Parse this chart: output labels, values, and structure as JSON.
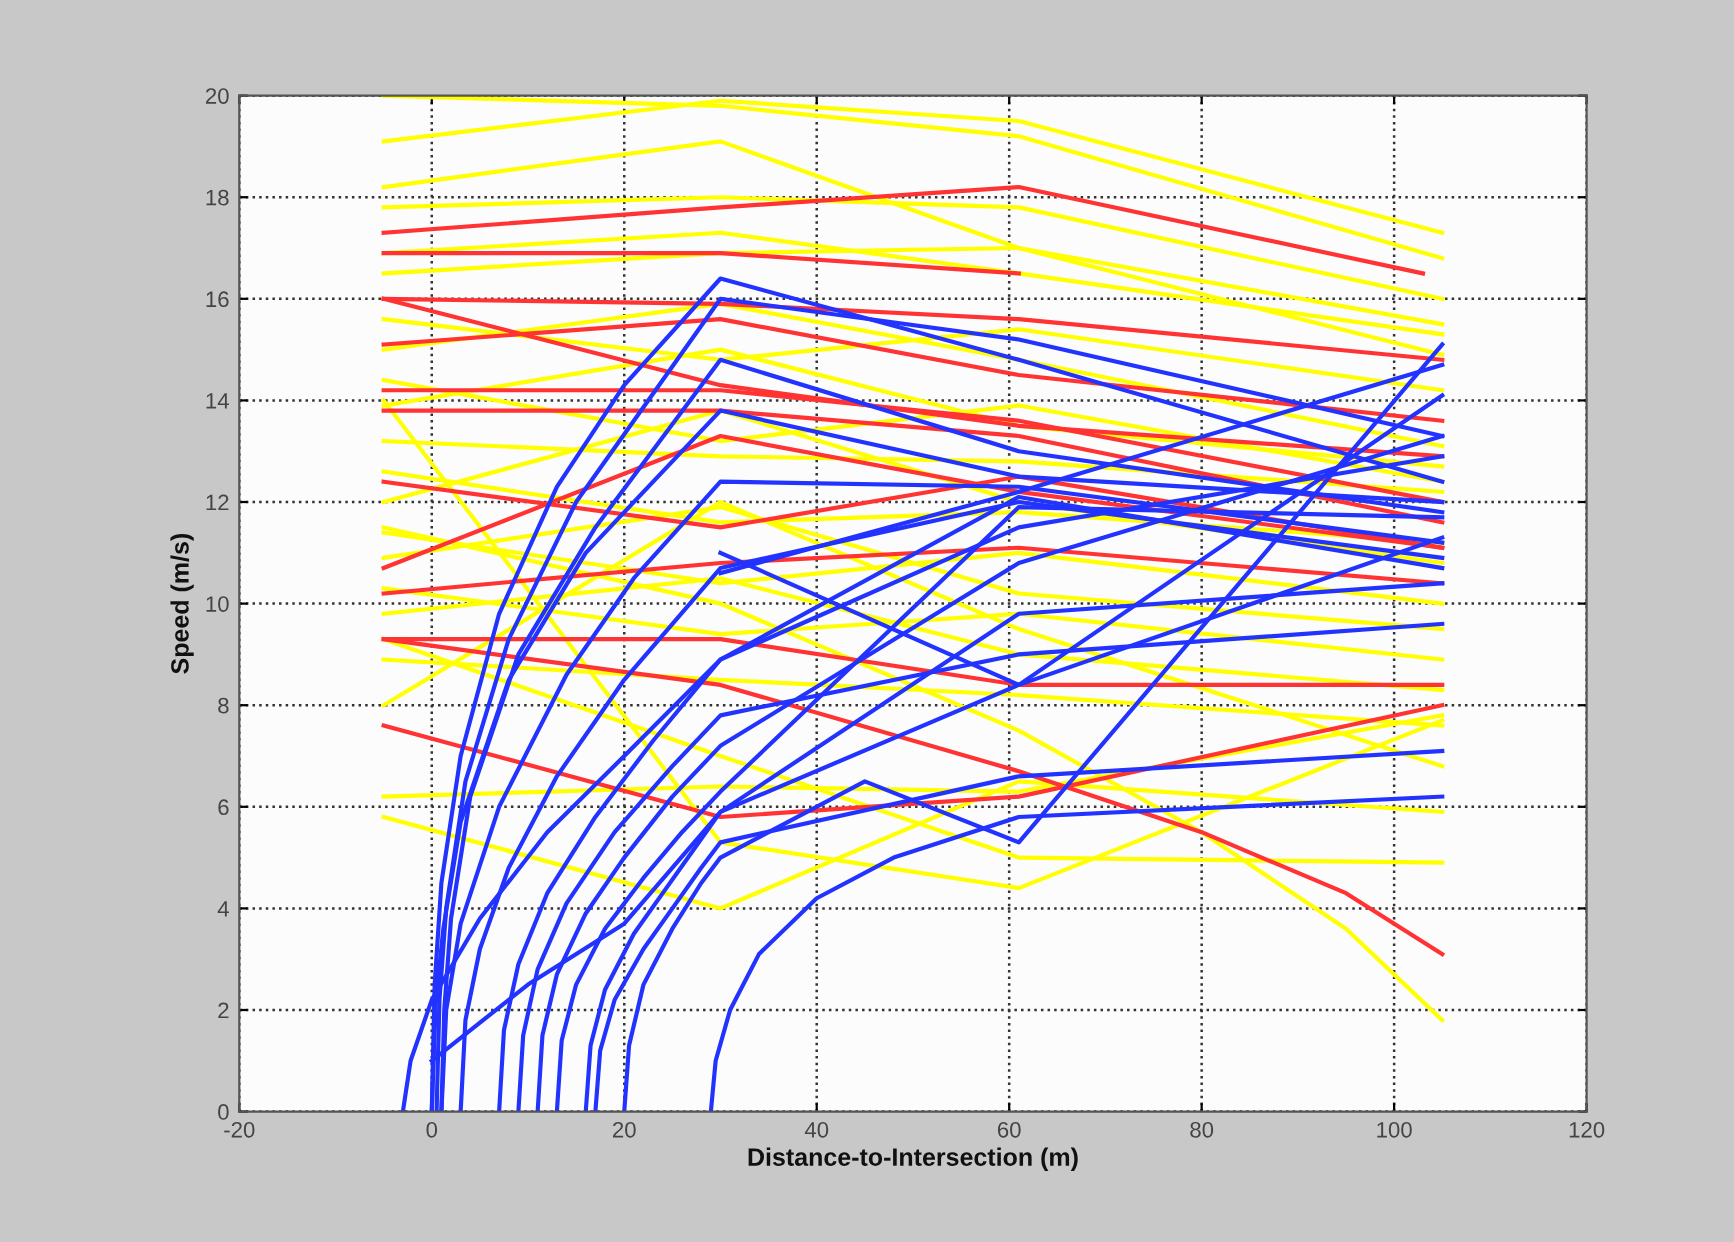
{
  "chart_data": {
    "type": "line",
    "xlabel": "Distance-to-Intersection (m)",
    "ylabel": "Speed (m/s)",
    "xlim": [
      -20,
      120
    ],
    "xticks": [
      -20,
      0,
      20,
      40,
      60,
      80,
      100,
      120
    ],
    "ylim": [
      0,
      20
    ],
    "yticks": [
      0,
      2,
      4,
      6,
      8,
      10,
      12,
      14,
      16,
      18,
      20
    ],
    "grid": true,
    "line_style": "solid",
    "series": [
      {
        "color": "#ffff00",
        "x": [
          -5,
          30,
          61,
          105
        ],
        "values": [
          20.0,
          19.8,
          19.2,
          16.8
        ]
      },
      {
        "color": "#ffff00",
        "x": [
          -5,
          30,
          61,
          105
        ],
        "values": [
          19.1,
          19.9,
          19.5,
          17.3
        ]
      },
      {
        "color": "#ffff00",
        "x": [
          -5,
          30,
          61,
          105
        ],
        "values": [
          18.2,
          19.1,
          17.0,
          15.5
        ]
      },
      {
        "color": "#ffff00",
        "x": [
          -5,
          30,
          61,
          105
        ],
        "values": [
          17.8,
          18.0,
          17.8,
          16.0
        ]
      },
      {
        "color": "#ffff00",
        "x": [
          -5,
          30,
          61,
          105
        ],
        "values": [
          16.9,
          17.3,
          16.5,
          15.3
        ]
      },
      {
        "color": "#ffff00",
        "x": [
          -5,
          30,
          61,
          105
        ],
        "values": [
          16.5,
          16.9,
          17.0,
          14.9
        ]
      },
      {
        "color": "#ffff00",
        "x": [
          -5,
          30,
          61,
          105
        ],
        "values": [
          15.6,
          14.8,
          15.4,
          14.2
        ]
      },
      {
        "color": "#ffff00",
        "x": [
          -5,
          30,
          61,
          105
        ],
        "values": [
          15.0,
          15.9,
          14.8,
          13.1
        ]
      },
      {
        "color": "#ffff00",
        "x": [
          -5,
          30,
          61,
          105
        ],
        "values": [
          14.4,
          13.2,
          13.9,
          12.4
        ]
      },
      {
        "color": "#ffff00",
        "x": [
          -5,
          30,
          61,
          105
        ],
        "values": [
          13.9,
          15.0,
          13.5,
          12.7
        ]
      },
      {
        "color": "#ffff00",
        "x": [
          -5,
          30,
          61,
          105
        ],
        "values": [
          13.2,
          12.9,
          12.8,
          12.2
        ]
      },
      {
        "color": "#ffff00",
        "x": [
          -5,
          30,
          61,
          105
        ],
        "values": [
          12.6,
          11.6,
          11.8,
          11.2
        ]
      },
      {
        "color": "#ffff00",
        "x": [
          -5,
          30,
          61,
          105
        ],
        "values": [
          12.0,
          13.8,
          12.0,
          10.8
        ]
      },
      {
        "color": "#ffff00",
        "x": [
          -5,
          30,
          61,
          105
        ],
        "values": [
          11.4,
          10.4,
          11.0,
          10.0
        ]
      },
      {
        "color": "#ffff00",
        "x": [
          -5,
          30,
          61,
          105
        ],
        "values": [
          10.9,
          11.9,
          10.2,
          9.5
        ]
      },
      {
        "color": "#ffff00",
        "x": [
          -5,
          30,
          61,
          105
        ],
        "values": [
          10.3,
          9.4,
          9.8,
          8.9
        ]
      },
      {
        "color": "#ffff00",
        "x": [
          -5,
          30,
          61,
          105
        ],
        "values": [
          9.8,
          10.5,
          9.0,
          8.3
        ]
      },
      {
        "color": "#ffff00",
        "x": [
          -5,
          30,
          61,
          105
        ],
        "values": [
          8.9,
          8.5,
          8.2,
          7.6
        ]
      },
      {
        "color": "#ffff00",
        "x": [
          -5,
          30,
          61,
          105
        ],
        "values": [
          8.0,
          12.0,
          9.5,
          6.8
        ]
      },
      {
        "color": "#ffff00",
        "x": [
          -5,
          30,
          61,
          105
        ],
        "values": [
          6.2,
          6.4,
          6.3,
          7.8
        ]
      },
      {
        "color": "#ffff00",
        "x": [
          -5,
          30,
          61,
          105
        ],
        "values": [
          5.8,
          4.0,
          6.5,
          5.9
        ]
      },
      {
        "color": "#ffff00",
        "x": [
          -5,
          30,
          61,
          105
        ],
        "values": [
          14.0,
          5.3,
          4.4,
          7.7
        ]
      },
      {
        "color": "#ffff00",
        "x": [
          -5,
          30,
          61,
          80,
          95,
          105
        ],
        "values": [
          11.5,
          10.0,
          7.5,
          5.5,
          3.6,
          1.8
        ]
      },
      {
        "color": "#ffff00",
        "x": [
          -5,
          30,
          61,
          105
        ],
        "values": [
          9.3,
          7.0,
          5.0,
          4.9
        ]
      },
      {
        "color": "#ff3333",
        "x": [
          -5,
          30,
          61,
          103
        ],
        "values": [
          17.3,
          17.8,
          18.2,
          16.5
        ]
      },
      {
        "color": "#ff3333",
        "x": [
          -5,
          30,
          61
        ],
        "values": [
          16.9,
          16.9,
          16.5
        ]
      },
      {
        "color": "#ff3333",
        "x": [
          -5,
          30,
          61,
          105
        ],
        "values": [
          16.0,
          15.9,
          15.6,
          14.8
        ]
      },
      {
        "color": "#ff3333",
        "x": [
          -5,
          30,
          61,
          105
        ],
        "values": [
          16.0,
          14.3,
          13.5,
          12.9
        ]
      },
      {
        "color": "#ff3333",
        "x": [
          -5,
          30,
          61,
          105
        ],
        "values": [
          15.1,
          15.6,
          14.5,
          13.6
        ]
      },
      {
        "color": "#ff3333",
        "x": [
          -5,
          30,
          61,
          105
        ],
        "values": [
          14.2,
          14.2,
          13.6,
          12.0
        ]
      },
      {
        "color": "#ff3333",
        "x": [
          -5,
          30,
          61,
          105
        ],
        "values": [
          13.8,
          13.8,
          13.3,
          11.6
        ]
      },
      {
        "color": "#ff3333",
        "x": [
          -5,
          30,
          61,
          105
        ],
        "values": [
          12.4,
          11.5,
          12.5,
          11.1
        ]
      },
      {
        "color": "#ff3333",
        "x": [
          -5,
          30,
          61,
          105
        ],
        "values": [
          10.7,
          13.3,
          12.2,
          11.1
        ]
      },
      {
        "color": "#ff3333",
        "x": [
          -5,
          30,
          61,
          105
        ],
        "values": [
          10.2,
          10.8,
          11.1,
          10.4
        ]
      },
      {
        "color": "#ff3333",
        "x": [
          -5,
          30,
          61,
          105
        ],
        "values": [
          9.3,
          9.3,
          8.4,
          8.4
        ]
      },
      {
        "color": "#ff3333",
        "x": [
          -5,
          30,
          61,
          105
        ],
        "values": [
          7.6,
          5.8,
          6.2,
          8.0
        ]
      },
      {
        "color": "#ff3333",
        "x": [
          -5,
          30,
          61,
          80,
          95,
          105
        ],
        "values": [
          9.3,
          8.4,
          6.7,
          5.5,
          4.3,
          3.1
        ]
      },
      {
        "color": "#2233ff",
        "x": [
          0,
          0.3,
          1,
          3,
          7,
          13,
          20,
          30,
          61,
          105
        ],
        "values": [
          0,
          2.5,
          4.5,
          7.0,
          9.8,
          12.3,
          14.3,
          16.4,
          14.8,
          12.4
        ]
      },
      {
        "color": "#2233ff",
        "x": [
          0.5,
          0.8,
          1.5,
          3.5,
          8,
          15,
          30,
          61,
          105
        ],
        "values": [
          0,
          2.2,
          4.0,
          6.5,
          9.3,
          12.0,
          16.0,
          15.2,
          13.3
        ]
      },
      {
        "color": "#2233ff",
        "x": [
          1,
          1.3,
          2,
          4,
          9,
          17,
          30,
          61,
          105
        ],
        "values": [
          0,
          2.0,
          3.8,
          6.2,
          9.0,
          11.5,
          14.8,
          13.0,
          11.8
        ]
      },
      {
        "color": "#2233ff",
        "x": [
          0,
          0.4,
          1.2,
          3,
          8,
          16,
          30,
          61,
          105
        ],
        "values": [
          0,
          2.1,
          3.6,
          5.7,
          8.5,
          11.0,
          13.8,
          12.5,
          12.0
        ]
      },
      {
        "color": "#2233ff",
        "x": [
          1,
          1.5,
          3,
          7,
          14,
          21,
          30,
          61,
          105
        ],
        "values": [
          0,
          2.0,
          3.7,
          6.0,
          8.6,
          10.5,
          12.4,
          12.3,
          11.2
        ]
      },
      {
        "color": "#2233ff",
        "x": [
          -3,
          -2.2,
          0,
          5,
          12,
          20,
          30,
          61,
          105
        ],
        "values": [
          0,
          1.0,
          2.2,
          3.8,
          5.5,
          7.0,
          8.9,
          12.1,
          10.7
        ]
      },
      {
        "color": "#2233ff",
        "x": [
          3,
          3.5,
          5,
          8,
          13,
          20,
          30,
          61,
          105
        ],
        "values": [
          0,
          1.8,
          3.2,
          4.8,
          6.6,
          8.5,
          10.7,
          12.0,
          10.9
        ]
      },
      {
        "color": "#2233ff",
        "x": [
          7,
          7.5,
          9,
          12,
          17,
          23,
          30,
          61,
          105
        ],
        "values": [
          0,
          1.6,
          2.9,
          4.3,
          5.8,
          7.3,
          8.9,
          11.5,
          12.9
        ]
      },
      {
        "color": "#2233ff",
        "x": [
          11,
          11.5,
          13,
          16,
          20,
          25,
          30,
          61,
          105
        ],
        "values": [
          0,
          1.5,
          2.7,
          3.9,
          5.0,
          6.2,
          7.2,
          10.8,
          13.3
        ]
      },
      {
        "color": "#2233ff",
        "x": [
          13,
          13.5,
          15,
          18,
          22,
          26,
          30,
          61,
          105
        ],
        "values": [
          0,
          1.4,
          2.5,
          3.6,
          4.6,
          5.5,
          6.3,
          11.9,
          11.7
        ]
      },
      {
        "color": "#2233ff",
        "x": [
          16,
          16.5,
          18,
          21,
          24,
          27,
          30,
          61,
          105
        ],
        "values": [
          0,
          1.3,
          2.4,
          3.5,
          4.3,
          5.1,
          5.9,
          9.8,
          10.4
        ]
      },
      {
        "color": "#2233ff",
        "x": [
          17,
          17.5,
          19,
          22,
          25,
          28,
          30,
          61,
          105
        ],
        "values": [
          0,
          1.2,
          2.2,
          3.2,
          4.0,
          4.8,
          5.3,
          6.6,
          7.1
        ]
      },
      {
        "color": "#2233ff",
        "x": [
          20,
          20.5,
          22,
          25,
          28,
          30,
          45,
          61,
          105
        ],
        "values": [
          0,
          1.3,
          2.5,
          3.6,
          4.5,
          5.0,
          6.5,
          5.3,
          15.1
        ]
      },
      {
        "color": "#2233ff",
        "x": [
          29,
          29.5,
          31,
          34,
          40,
          48,
          61,
          105
        ],
        "values": [
          0,
          1.0,
          2.0,
          3.1,
          4.2,
          5.0,
          5.8,
          6.2
        ]
      },
      {
        "color": "#2233ff",
        "x": [
          0,
          10,
          20,
          30,
          61,
          105
        ],
        "values": [
          1.0,
          2.5,
          3.7,
          5.9,
          8.4,
          11.3
        ]
      },
      {
        "color": "#2233ff",
        "x": [
          9,
          9.5,
          11,
          14,
          19,
          25,
          30,
          61,
          105
        ],
        "values": [
          0,
          1.5,
          2.8,
          4.1,
          5.5,
          6.8,
          7.8,
          9.0,
          9.6
        ]
      },
      {
        "color": "#2233ff",
        "x": [
          30,
          61,
          105
        ],
        "values": [
          10.6,
          12.2,
          14.7
        ]
      },
      {
        "color": "#2233ff",
        "x": [
          30,
          61,
          105
        ],
        "values": [
          11.0,
          8.4,
          14.1
        ]
      }
    ]
  }
}
